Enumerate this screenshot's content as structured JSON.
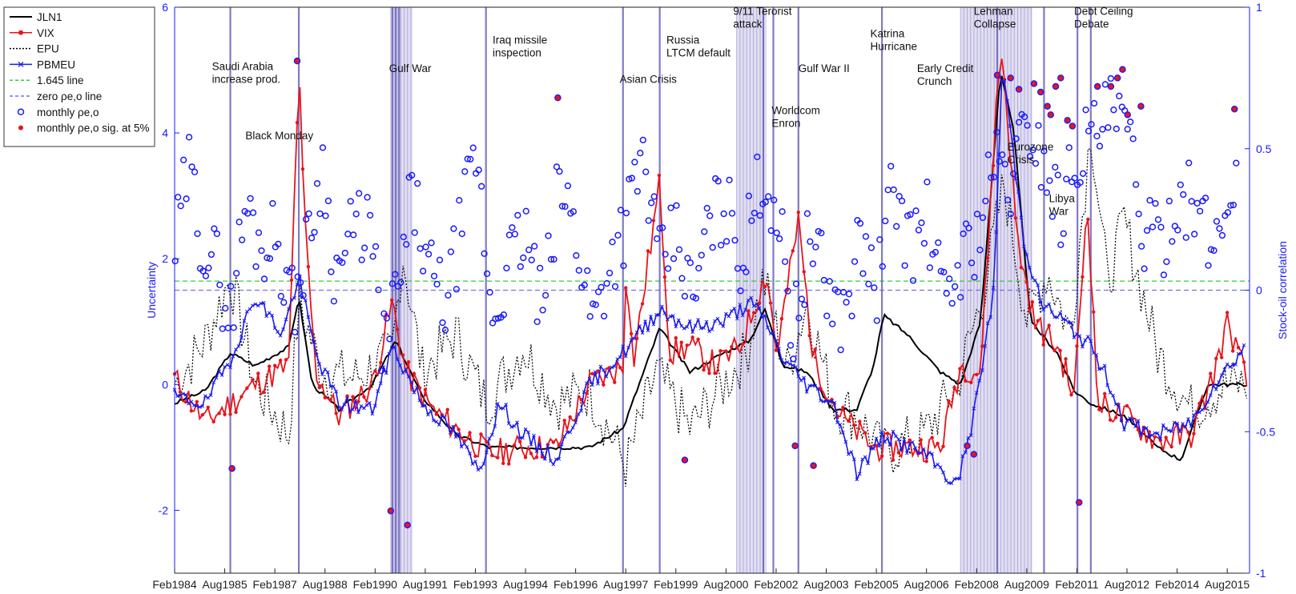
{
  "chart_data": {
    "type": "line",
    "title": "",
    "xlabel": "",
    "ylabel_left": "Uncertainty",
    "ylabel_right": "Stock-oil correlation",
    "xlim": [
      1984.083,
      2016.25
    ],
    "ylim_left": [
      -3,
      6
    ],
    "ylim_right": [
      -1,
      1
    ],
    "x_tick_labels": [
      "Feb1984",
      "Aug1985",
      "Feb1987",
      "Aug1988",
      "Feb1990",
      "Aug1991",
      "Feb1993",
      "Aug1994",
      "Feb1996",
      "Aug1997",
      "Feb1999",
      "Aug2000",
      "Feb2002",
      "Aug2003",
      "Feb2005",
      "Aug2006",
      "Feb2008",
      "Aug2009",
      "Feb2011",
      "Aug2012",
      "Feb2014",
      "Aug2015"
    ],
    "x_tick_values": [
      1984.083,
      1985.583,
      1987.083,
      1988.583,
      1990.083,
      1991.583,
      1993.083,
      1994.583,
      1996.083,
      1997.583,
      1999.083,
      2000.583,
      2002.083,
      2003.583,
      2005.083,
      2006.583,
      2008.083,
      2009.583,
      2011.083,
      2012.583,
      2014.083,
      2015.583
    ],
    "y_left_ticks": [
      -2,
      0,
      2,
      4,
      6
    ],
    "y_right_ticks": [
      -1,
      -0.5,
      0,
      0.5,
      1
    ],
    "legend_placement": "outside-top-left",
    "legend": [
      {
        "label": "JLN1",
        "color": "#000000",
        "style": "solid"
      },
      {
        "label": "VIX",
        "color": "#e8141b",
        "style": "solid-dot"
      },
      {
        "label": "EPU",
        "color": "#000000",
        "style": "dotted"
      },
      {
        "label": "PBMEU",
        "color": "#1a1aee",
        "style": "solid-x"
      },
      {
        "label": "1.645 line",
        "color": "#33cc33",
        "style": "dashed"
      },
      {
        "label": "zero ρe,o line",
        "color": "#7070ee",
        "style": "dashed"
      },
      {
        "label": "monthly ρe,o",
        "color": "#1a1aff",
        "style": "circle"
      },
      {
        "label": "monthly ρe,o sig. at 5%",
        "color": "#e8141b",
        "style": "filled-dot"
      }
    ],
    "reference_lines": [
      {
        "name": "1.645 line",
        "axis": "left",
        "value": 1.645
      },
      {
        "name": "zero ρe,o line",
        "axis": "right",
        "value": 0
      }
    ],
    "event_lines": [
      1985.75,
      1987.8,
      1990.6,
      1990.7,
      1990.8,
      1993.4,
      1997.5,
      1998.6,
      2001.7,
      2002.0,
      2002.75,
      2005.25,
      2008.7,
      2010.1,
      2011.1,
      2011.5
    ],
    "shaded_periods": [
      {
        "start": 1990.55,
        "end": 1991.2
      },
      {
        "start": 2000.9,
        "end": 2001.8
      },
      {
        "start": 2007.6,
        "end": 2009.75
      }
    ],
    "annotations": [
      {
        "text": [
          "Saudi Arabia",
          "increase prod."
        ],
        "x": 1985.2,
        "y": 5.0
      },
      {
        "text": [
          "Black Monday"
        ],
        "x": 1986.2,
        "y": 3.9
      },
      {
        "text": [
          "Gulf War"
        ],
        "x": 1990.5,
        "y": 4.97
      },
      {
        "text": [
          "Iraq missile",
          "inspection"
        ],
        "x": 1993.6,
        "y": 5.42
      },
      {
        "text": [
          "Asian Crisis"
        ],
        "x": 1997.4,
        "y": 4.8
      },
      {
        "text": [
          "Russia",
          "LTCM default"
        ],
        "x": 1998.8,
        "y": 5.42
      },
      {
        "text": [
          "9/11 Terorist",
          "attack"
        ],
        "x": 2000.8,
        "y": 5.88
      },
      {
        "text": [
          "Worldcom",
          "Enron"
        ],
        "x": 2001.95,
        "y": 4.3
      },
      {
        "text": [
          "Gulf War II"
        ],
        "x": 2002.75,
        "y": 4.97
      },
      {
        "text": [
          "Katrina",
          "Hurricane"
        ],
        "x": 2004.9,
        "y": 5.52
      },
      {
        "text": [
          "Early Credit",
          "Crunch"
        ],
        "x": 2006.3,
        "y": 4.97
      },
      {
        "text": [
          "Lehman",
          "Collapse"
        ],
        "x": 2008.0,
        "y": 5.88
      },
      {
        "text": [
          "Debt Ceiling",
          "Debate"
        ],
        "x": 2011.0,
        "y": 5.88
      },
      {
        "text": [
          "Eurozone",
          "Crisis"
        ],
        "x": 2009.0,
        "y": 3.72
      },
      {
        "text": [
          "Libya",
          "War"
        ],
        "x": 2010.25,
        "y": 2.9
      }
    ],
    "series_keyframes": {
      "JLN1": [
        [
          1984.083,
          -0.3
        ],
        [
          1985.0,
          -0.1
        ],
        [
          1985.75,
          0.5
        ],
        [
          1986.5,
          0.3
        ],
        [
          1987.5,
          0.6
        ],
        [
          1987.8,
          1.4
        ],
        [
          1988.2,
          0.0
        ],
        [
          1989.0,
          -0.4
        ],
        [
          1990.0,
          0.0
        ],
        [
          1990.7,
          0.7
        ],
        [
          1991.5,
          -0.2
        ],
        [
          1992.5,
          -0.8
        ],
        [
          1993.5,
          -1.0
        ],
        [
          1994.5,
          -1.0
        ],
        [
          1995.5,
          -1.0
        ],
        [
          1996.5,
          -1.0
        ],
        [
          1997.5,
          -0.7
        ],
        [
          1998.6,
          0.9
        ],
        [
          1999.5,
          0.2
        ],
        [
          2000.5,
          0.5
        ],
        [
          2001.3,
          0.7
        ],
        [
          2001.75,
          1.2
        ],
        [
          2002.3,
          0.3
        ],
        [
          2003.0,
          0.2
        ],
        [
          2003.8,
          -0.4
        ],
        [
          2004.5,
          -0.4
        ],
        [
          2005.0,
          0.3
        ],
        [
          2005.3,
          1.1
        ],
        [
          2006.0,
          0.8
        ],
        [
          2007.0,
          0.2
        ],
        [
          2007.6,
          0.0
        ],
        [
          2008.2,
          1.0
        ],
        [
          2008.8,
          5.0
        ],
        [
          2009.2,
          4.0
        ],
        [
          2009.7,
          1.0
        ],
        [
          2010.5,
          0.5
        ],
        [
          2011.0,
          -0.1
        ],
        [
          2011.5,
          -0.3
        ],
        [
          2012.5,
          -0.5
        ],
        [
          2013.5,
          -1.0
        ],
        [
          2014.2,
          -1.2
        ],
        [
          2015.0,
          0.0
        ],
        [
          2016.2,
          0.0
        ]
      ],
      "VIX": [
        [
          1984.083,
          0.1
        ],
        [
          1985.0,
          -0.6
        ],
        [
          1985.75,
          -0.3
        ],
        [
          1986.5,
          0.0
        ],
        [
          1987.5,
          0.3
        ],
        [
          1987.8,
          5.05
        ],
        [
          1987.95,
          2.8
        ],
        [
          1988.3,
          0.2
        ],
        [
          1989.0,
          -0.5
        ],
        [
          1990.0,
          0.0
        ],
        [
          1990.6,
          1.3
        ],
        [
          1991.0,
          0.2
        ],
        [
          1991.8,
          -0.4
        ],
        [
          1992.5,
          -0.7
        ],
        [
          1993.5,
          -1.1
        ],
        [
          1994.5,
          -1.0
        ],
        [
          1995.5,
          -1.0
        ],
        [
          1996.5,
          0.0
        ],
        [
          1997.5,
          0.3
        ],
        [
          1997.6,
          2.0
        ],
        [
          1997.8,
          0.3
        ],
        [
          1998.6,
          3.2
        ],
        [
          1998.9,
          0.5
        ],
        [
          1999.5,
          0.6
        ],
        [
          2000.3,
          0.3
        ],
        [
          2001.0,
          0.6
        ],
        [
          2001.8,
          1.8
        ],
        [
          2002.1,
          0.5
        ],
        [
          2002.75,
          2.6
        ],
        [
          2003.2,
          0.4
        ],
        [
          2004.0,
          -0.5
        ],
        [
          2005.0,
          -1.0
        ],
        [
          2006.0,
          -1.0
        ],
        [
          2007.0,
          -1.0
        ],
        [
          2007.6,
          0.3
        ],
        [
          2008.2,
          0.2
        ],
        [
          2008.7,
          4.7
        ],
        [
          2008.85,
          5.3
        ],
        [
          2009.3,
          2.3
        ],
        [
          2009.8,
          1.0
        ],
        [
          2010.5,
          0.6
        ],
        [
          2011.0,
          -0.2
        ],
        [
          2011.4,
          3.0
        ],
        [
          2011.7,
          -0.3
        ],
        [
          2012.5,
          -0.5
        ],
        [
          2013.5,
          -0.9
        ],
        [
          2014.5,
          -0.8
        ],
        [
          2015.2,
          0.2
        ],
        [
          2015.6,
          1.0
        ],
        [
          2016.2,
          0.0
        ]
      ],
      "EPU": [
        [
          1984.083,
          0.0
        ],
        [
          1985.0,
          0.7
        ],
        [
          1985.75,
          1.7
        ],
        [
          1986.5,
          0.0
        ],
        [
          1987.5,
          -0.8
        ],
        [
          1987.8,
          1.3
        ],
        [
          1988.5,
          0.2
        ],
        [
          1989.5,
          0.1
        ],
        [
          1990.6,
          0.5
        ],
        [
          1990.9,
          2.1
        ],
        [
          1991.5,
          0.2
        ],
        [
          1992.5,
          0.8
        ],
        [
          1993.4,
          -0.3
        ],
        [
          1994.5,
          0.6
        ],
        [
          1995.5,
          -0.3
        ],
        [
          1996.5,
          -0.1
        ],
        [
          1997.6,
          -1.3
        ],
        [
          1998.5,
          0.2
        ],
        [
          1999.5,
          -0.7
        ],
        [
          2000.5,
          0.0
        ],
        [
          2001.2,
          0.5
        ],
        [
          2001.7,
          1.7
        ],
        [
          2002.4,
          0.2
        ],
        [
          2003.0,
          1.3
        ],
        [
          2003.8,
          -0.3
        ],
        [
          2004.5,
          -0.5
        ],
        [
          2005.3,
          -1.1
        ],
        [
          2006.5,
          -0.8
        ],
        [
          2007.5,
          0.0
        ],
        [
          2008.3,
          1.5
        ],
        [
          2008.9,
          3.2
        ],
        [
          2009.6,
          1.0
        ],
        [
          2010.2,
          1.8
        ],
        [
          2010.9,
          0.8
        ],
        [
          2011.5,
          4.1
        ],
        [
          2012.0,
          1.6
        ],
        [
          2012.5,
          2.6
        ],
        [
          2013.5,
          0.5
        ],
        [
          2014.5,
          -0.4
        ],
        [
          2015.5,
          0.0
        ],
        [
          2016.2,
          0.0
        ]
      ],
      "PBMEU": [
        [
          1984.083,
          -0.2
        ],
        [
          1985.0,
          -0.3
        ],
        [
          1985.75,
          0.4
        ],
        [
          1986.5,
          1.4
        ],
        [
          1987.3,
          0.8
        ],
        [
          1987.8,
          1.7
        ],
        [
          1988.3,
          0.5
        ],
        [
          1989.0,
          -0.3
        ],
        [
          1990.0,
          -0.4
        ],
        [
          1990.6,
          0.6
        ],
        [
          1991.5,
          -0.3
        ],
        [
          1992.5,
          -0.8
        ],
        [
          1993.2,
          -1.4
        ],
        [
          1993.8,
          -0.3
        ],
        [
          1994.5,
          -0.8
        ],
        [
          1995.5,
          -1.2
        ],
        [
          1996.5,
          0.0
        ],
        [
          1997.5,
          0.5
        ],
        [
          1998.6,
          1.2
        ],
        [
          1999.5,
          0.9
        ],
        [
          2000.5,
          1.0
        ],
        [
          2001.3,
          1.3
        ],
        [
          2001.8,
          1.0
        ],
        [
          2002.3,
          0.4
        ],
        [
          2003.0,
          0.0
        ],
        [
          2003.8,
          -0.3
        ],
        [
          2004.5,
          -1.4
        ],
        [
          2005.3,
          -0.8
        ],
        [
          2006.5,
          -1.1
        ],
        [
          2007.5,
          -1.6
        ],
        [
          2008.0,
          -0.5
        ],
        [
          2008.6,
          1.5
        ],
        [
          2008.85,
          5.1
        ],
        [
          2009.5,
          2.3
        ],
        [
          2010.0,
          1.3
        ],
        [
          2010.7,
          1.0
        ],
        [
          2011.5,
          0.6
        ],
        [
          2012.0,
          0.1
        ],
        [
          2012.5,
          -0.6
        ],
        [
          2013.5,
          -0.8
        ],
        [
          2014.5,
          -0.6
        ],
        [
          2015.2,
          0.0
        ],
        [
          2016.1,
          0.6
        ]
      ],
      "rho_monthly": [
        [
          1984.1,
          0.14
        ],
        [
          1984.5,
          0.44
        ],
        [
          1984.9,
          0.18
        ],
        [
          1985.3,
          0.1
        ],
        [
          1985.75,
          -0.1
        ],
        [
          1986.2,
          0.3
        ],
        [
          1986.7,
          0.15
        ],
        [
          1987.1,
          0.2
        ],
        [
          1987.6,
          -0.05
        ],
        [
          1988.0,
          0.12
        ],
        [
          1988.5,
          0.45
        ],
        [
          1988.9,
          0.05
        ],
        [
          1989.4,
          0.2
        ],
        [
          1989.9,
          0.25
        ],
        [
          1990.3,
          -0.2
        ],
        [
          1990.8,
          0.0
        ],
        [
          1991.2,
          0.35
        ],
        [
          1991.7,
          0.05
        ],
        [
          1992.2,
          -0.05
        ],
        [
          1992.7,
          0.25
        ],
        [
          1993.1,
          0.48
        ],
        [
          1993.6,
          -0.1
        ],
        [
          1994.1,
          0.1
        ],
        [
          1994.6,
          0.2
        ],
        [
          1995.1,
          -0.1
        ],
        [
          1995.6,
          0.38
        ],
        [
          1996.1,
          0.2
        ],
        [
          1996.6,
          -0.1
        ],
        [
          1997.1,
          0.1
        ],
        [
          1997.6,
          0.25
        ],
        [
          1998.1,
          0.48
        ],
        [
          1998.6,
          0.08
        ],
        [
          1999.1,
          0.2
        ],
        [
          1999.6,
          -0.05
        ],
        [
          2000.1,
          0.25
        ],
        [
          2000.6,
          0.3
        ],
        [
          2001.1,
          0.1
        ],
        [
          2001.6,
          0.4
        ],
        [
          2002.1,
          0.3
        ],
        [
          2002.6,
          -0.15
        ],
        [
          2003.1,
          0.2
        ],
        [
          2003.6,
          0.0
        ],
        [
          2004.1,
          -0.1
        ],
        [
          2004.6,
          0.18
        ],
        [
          2005.1,
          0.0
        ],
        [
          2005.6,
          0.38
        ],
        [
          2006.1,
          0.15
        ],
        [
          2006.6,
          0.25
        ],
        [
          2007.1,
          -0.05
        ],
        [
          2007.6,
          0.1
        ],
        [
          2008.1,
          0.2
        ],
        [
          2008.6,
          0.45
        ],
        [
          2009.1,
          0.38
        ],
        [
          2009.6,
          0.6
        ],
        [
          2010.1,
          0.45
        ],
        [
          2010.6,
          0.28
        ],
        [
          2011.1,
          0.5
        ],
        [
          2011.6,
          0.55
        ],
        [
          2012.1,
          0.62
        ],
        [
          2012.6,
          0.55
        ],
        [
          2013.1,
          0.2
        ],
        [
          2013.6,
          0.15
        ],
        [
          2014.1,
          0.35
        ],
        [
          2014.6,
          0.3
        ],
        [
          2015.1,
          0.15
        ],
        [
          2015.5,
          0.25
        ],
        [
          2015.9,
          0.5
        ]
      ],
      "rho_sig": [
        [
          1985.8,
          -0.63
        ],
        [
          1987.75,
          0.81
        ],
        [
          1990.55,
          -0.78
        ],
        [
          1991.05,
          -0.83
        ],
        [
          1995.55,
          0.68
        ],
        [
          1999.35,
          -0.6
        ],
        [
          2002.65,
          -0.55
        ],
        [
          2003.2,
          -0.62
        ],
        [
          2007.8,
          -0.55
        ],
        [
          2008.0,
          -0.58
        ],
        [
          2008.7,
          0.76
        ],
        [
          2009.1,
          0.75
        ],
        [
          2009.35,
          0.71
        ],
        [
          2009.8,
          0.73
        ],
        [
          2010.0,
          0.7
        ],
        [
          2010.2,
          0.65
        ],
        [
          2010.3,
          0.62
        ],
        [
          2010.45,
          0.72
        ],
        [
          2010.6,
          0.75
        ],
        [
          2010.8,
          0.6
        ],
        [
          2010.95,
          0.58
        ],
        [
          2011.15,
          -0.75
        ],
        [
          2011.7,
          0.72
        ],
        [
          2012.1,
          0.72
        ],
        [
          2012.3,
          0.75
        ],
        [
          2012.45,
          0.78
        ],
        [
          2012.6,
          0.62
        ],
        [
          2013.0,
          0.65
        ],
        [
          2015.8,
          0.64
        ]
      ]
    }
  }
}
